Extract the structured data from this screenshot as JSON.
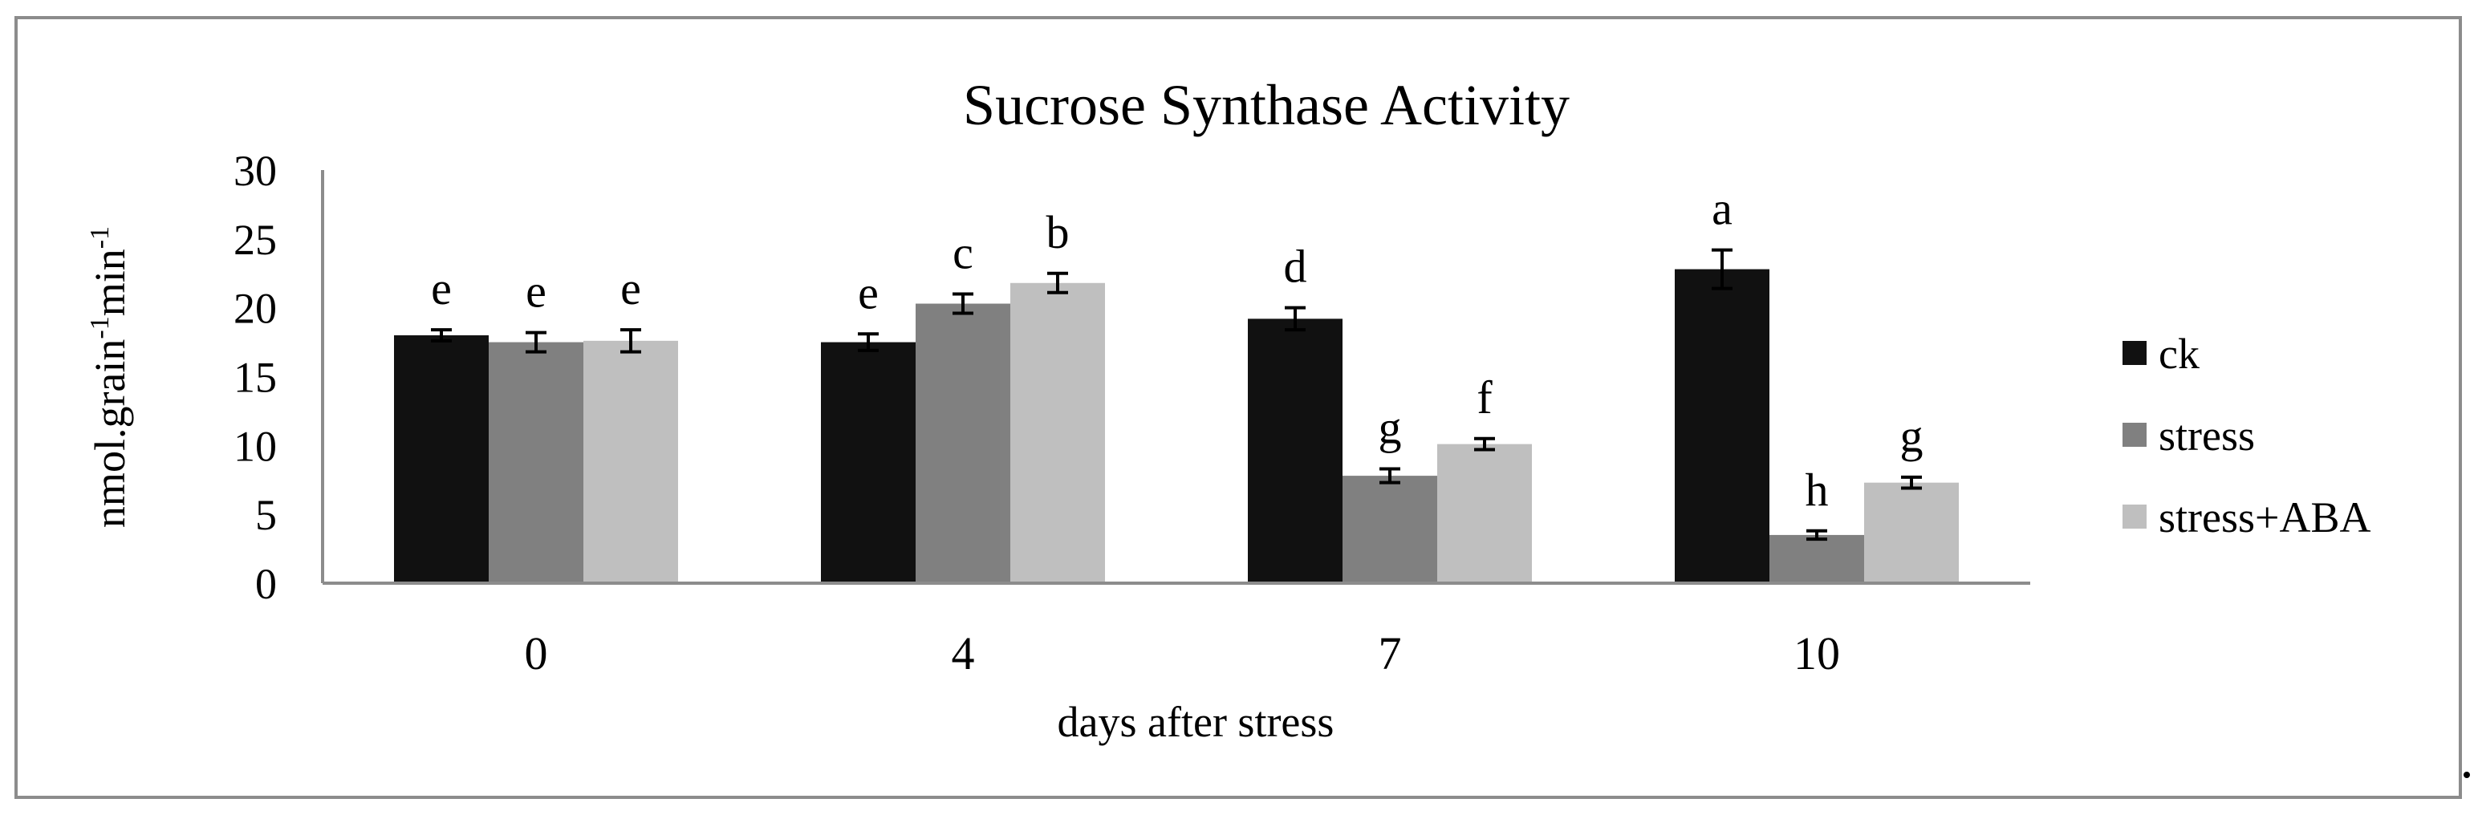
{
  "chart_data": {
    "type": "bar",
    "title": "Sucrose Synthase Activity",
    "xlabel": "days after stress",
    "ylabel": "nmol.grain",
    "ylabel_sup1": "-1",
    "ylabel_mid": "min",
    "ylabel_sup2": "-1",
    "ylim": [
      0,
      30
    ],
    "yticks": [
      0,
      5,
      10,
      15,
      20,
      25,
      30
    ],
    "categories": [
      "0",
      "4",
      "7",
      "10"
    ],
    "series": [
      {
        "name": "ck",
        "color": "#111111",
        "values": [
          18,
          17.5,
          19.2,
          22.8
        ],
        "errors": [
          0.4,
          0.6,
          0.8,
          1.4
        ],
        "letters": [
          "e",
          "e",
          "d",
          "a"
        ]
      },
      {
        "name": "stress",
        "color": "#808080",
        "values": [
          17.5,
          20.3,
          7.8,
          3.5
        ],
        "errors": [
          0.7,
          0.7,
          0.5,
          0.3
        ],
        "letters": [
          "e",
          "c",
          "g",
          "h"
        ]
      },
      {
        "name": "stress+ABA",
        "color": "#bfbfbf",
        "values": [
          17.6,
          21.8,
          10.1,
          7.3
        ],
        "errors": [
          0.8,
          0.7,
          0.4,
          0.4
        ],
        "letters": [
          "e",
          "b",
          "f",
          "g"
        ]
      }
    ],
    "legend_position": "right"
  }
}
